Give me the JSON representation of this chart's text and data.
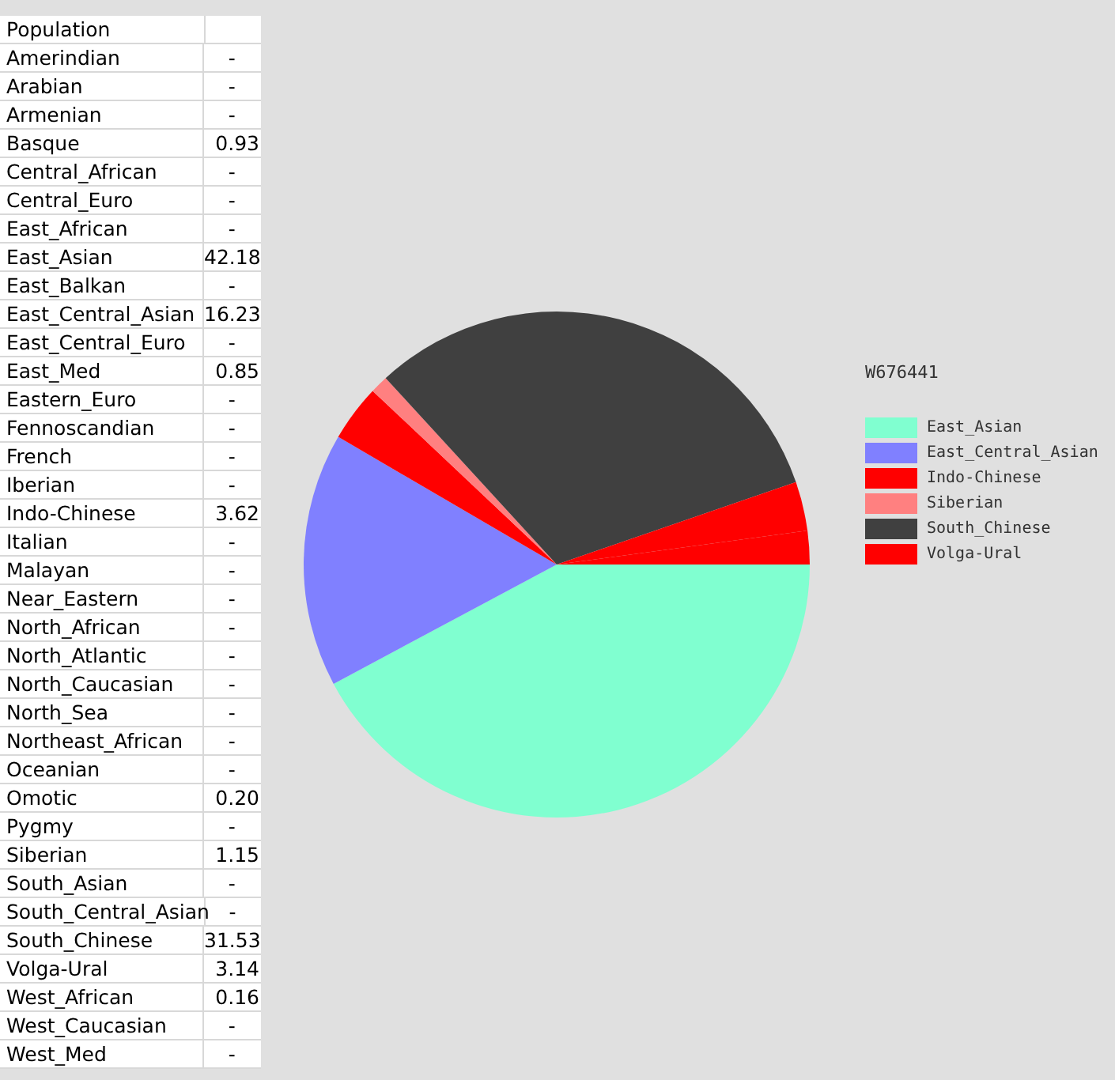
{
  "chart_data": [
    {
      "type": "other",
      "title": "Population",
      "categories": [
        "Amerindian",
        "Arabian",
        "Armenian",
        "Basque",
        "Central_African",
        "Central_Euro",
        "East_African",
        "East_Asian",
        "East_Balkan",
        "East_Central_Asian",
        "East_Central_Euro",
        "East_Med",
        "Eastern_Euro",
        "Fennoscandian",
        "French",
        "Iberian",
        "Indo-Chinese",
        "Italian",
        "Malayan",
        "Near_Eastern",
        "North_African",
        "North_Atlantic",
        "North_Caucasian",
        "North_Sea",
        "Northeast_African",
        "Oceanian",
        "Omotic",
        "Pygmy",
        "Siberian",
        "South_Asian",
        "South_Central_Asian",
        "South_Chinese",
        "Volga-Ural",
        "West_African",
        "West_Caucasian",
        "West_Med"
      ],
      "values": [
        null,
        null,
        null,
        0.93,
        null,
        null,
        null,
        42.18,
        null,
        16.23,
        null,
        0.85,
        null,
        null,
        null,
        null,
        3.62,
        null,
        null,
        null,
        null,
        null,
        null,
        null,
        null,
        null,
        0.2,
        null,
        1.15,
        null,
        null,
        31.53,
        3.14,
        0.16,
        null,
        null
      ],
      "value_labels": [
        "-",
        "-",
        "-",
        "0.93",
        "-",
        "-",
        "-",
        "42.18",
        "-",
        "16.23",
        "-",
        "0.85",
        "-",
        "-",
        "-",
        "-",
        "3.62",
        "-",
        "-",
        "-",
        "-",
        "-",
        "-",
        "-",
        "-",
        "-",
        "0.20",
        "-",
        "1.15",
        "-",
        "-",
        "31.53",
        "3.14",
        "0.16",
        "-",
        "-"
      ]
    },
    {
      "type": "pie",
      "title": "W676441",
      "legend": "right",
      "categories": [
        "East_Asian",
        "East_Central_Asian",
        "Indo-Chinese",
        "Siberian",
        "South_Chinese",
        "Volga-Ural",
        null
      ],
      "values": [
        42.18,
        16.23,
        3.62,
        1.15,
        31.53,
        3.14,
        2.14
      ],
      "colors": [
        "#80ffd0",
        "#8080ff",
        "#ff0000",
        "#ff8080",
        "#404040",
        "#ff0000",
        "#ff0000"
      ]
    }
  ]
}
